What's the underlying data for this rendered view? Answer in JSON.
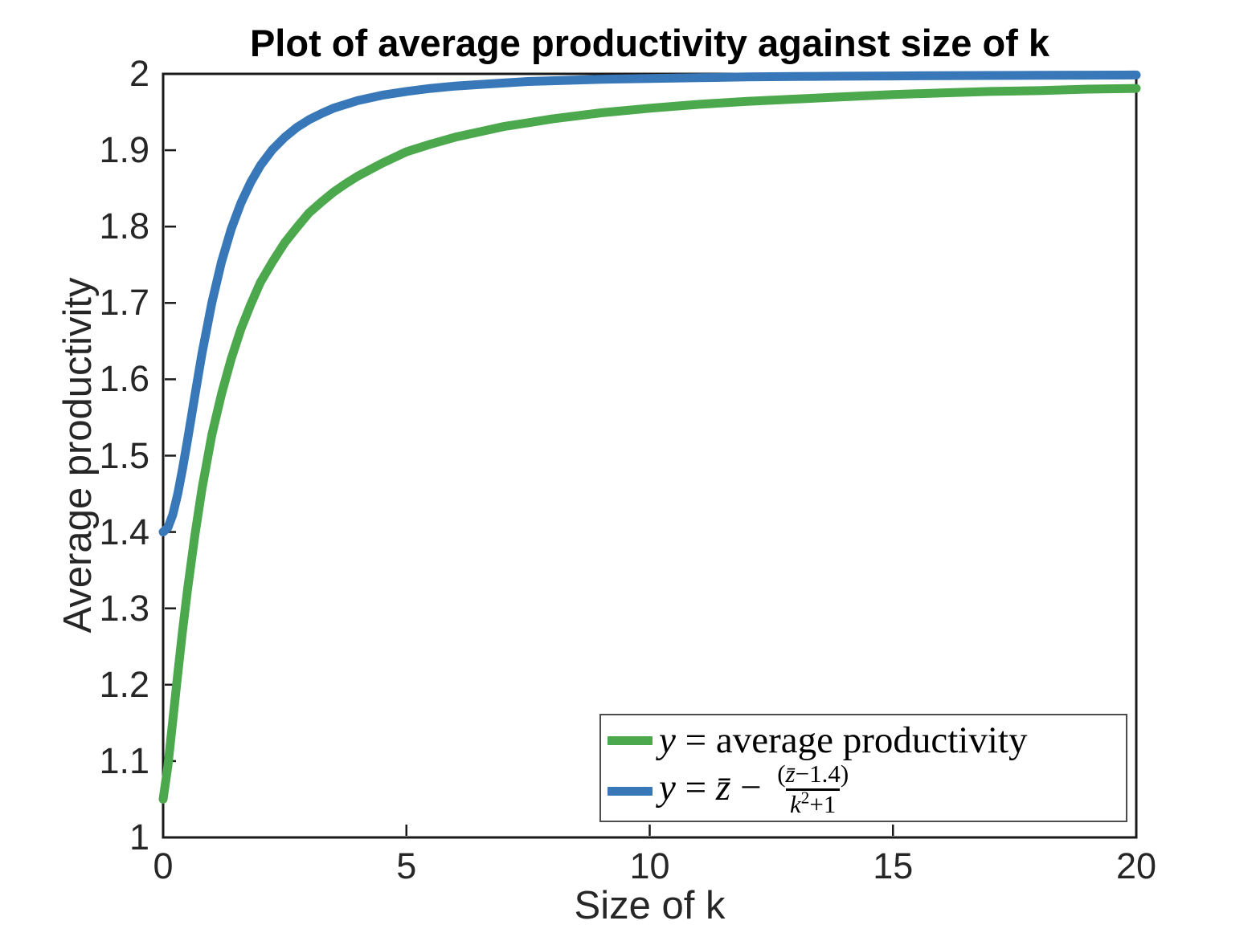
{
  "chart_data": {
    "type": "line",
    "title": "Plot of average productivity against size of k",
    "xlabel": "Size of k",
    "ylabel": "Average productivity",
    "xlim": [
      0,
      20
    ],
    "ylim": [
      1,
      2
    ],
    "grid": false,
    "legend_position": "bottom-right",
    "x_ticks": {
      "values": [
        0,
        5,
        10,
        15,
        20
      ],
      "labels": [
        "0",
        "5",
        "10",
        "15",
        "20"
      ]
    },
    "y_ticks": {
      "values": [
        1,
        1.1,
        1.2,
        1.3,
        1.4,
        1.5,
        1.6,
        1.7,
        1.8,
        1.9,
        2
      ],
      "labels": [
        "1",
        "1.1",
        "1.2",
        "1.3",
        "1.4",
        "1.5",
        "1.6",
        "1.7",
        "1.8",
        "1.9",
        "2"
      ]
    },
    "x": [
      0,
      0.1,
      0.2,
      0.3,
      0.4,
      0.5,
      0.65,
      0.8,
      1,
      1.2,
      1.4,
      1.6,
      1.8,
      2,
      2.25,
      2.5,
      2.75,
      3,
      3.25,
      3.5,
      3.75,
      4,
      4.5,
      5,
      5.5,
      6,
      6.5,
      7,
      7.5,
      8,
      9,
      10,
      11,
      12,
      13,
      14,
      15,
      16,
      17,
      18,
      19,
      20
    ],
    "series": [
      {
        "name": "y = average productivity",
        "color": "#4CA84C",
        "values": [
          1.05,
          1.095,
          1.154,
          1.214,
          1.271,
          1.324,
          1.395,
          1.457,
          1.527,
          1.581,
          1.627,
          1.666,
          1.698,
          1.727,
          1.754,
          1.779,
          1.799,
          1.818,
          1.832,
          1.845,
          1.856,
          1.866,
          1.883,
          1.898,
          1.908,
          1.917,
          1.924,
          1.931,
          1.936,
          1.941,
          1.949,
          1.955,
          1.96,
          1.964,
          1.967,
          1.97,
          1.973,
          1.975,
          1.977,
          1.978,
          1.98,
          1.981
        ]
      },
      {
        "name": "y = z̄ − (z̄−1.4)/(k²+1)",
        "color": "#3878B8",
        "values": [
          1.4,
          1.406,
          1.423,
          1.45,
          1.483,
          1.52,
          1.578,
          1.634,
          1.7,
          1.754,
          1.797,
          1.831,
          1.858,
          1.88,
          1.901,
          1.917,
          1.93,
          1.94,
          1.948,
          1.955,
          1.96,
          1.965,
          1.972,
          1.977,
          1.981,
          1.984,
          1.986,
          1.988,
          1.99,
          1.991,
          1.993,
          1.994,
          1.995,
          1.996,
          1.9965,
          1.997,
          1.9973,
          1.9977,
          1.9979,
          1.9981,
          1.9983,
          1.9985
        ]
      }
    ]
  },
  "legend": {
    "entries": [
      {
        "label": "y = average productivity",
        "var": "y",
        "rest": " = average productivity"
      },
      {
        "label": "y = z̄ − (z̄−1.4)/(k²+1)",
        "var": "y",
        "eq": " = ",
        "zbar": "z̄",
        "minus": " − ",
        "frac": {
          "num_open": "(",
          "num_var": "z̄",
          "num_rest": "−1.4)",
          "den_var": "k",
          "den_sup": "2",
          "den_rest": "+1"
        }
      }
    ]
  }
}
